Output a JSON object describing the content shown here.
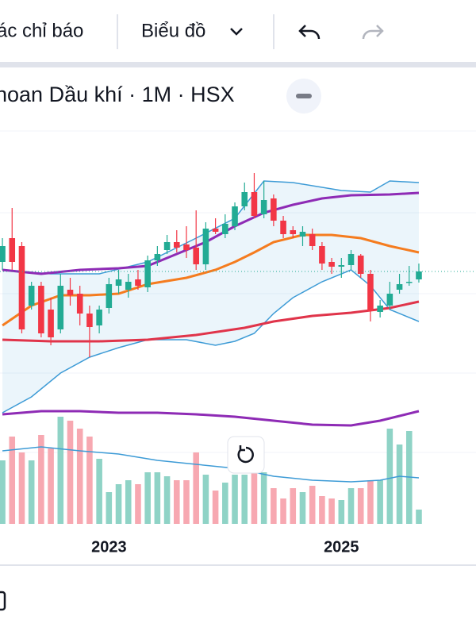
{
  "toolbar": {
    "indicators": "ác chỉ báo",
    "chart": "Biểu đồ"
  },
  "header": {
    "title": "hoan Dầu khí · 1M · HSX"
  },
  "chart_data": {
    "type": "candlestick",
    "x": [
      0,
      1,
      2,
      3,
      4,
      5,
      6,
      7,
      8,
      9,
      10,
      11,
      12,
      13,
      14,
      15,
      16,
      17,
      18,
      19,
      20,
      21,
      22,
      23,
      24,
      25,
      26,
      27,
      28,
      29,
      30,
      31,
      32,
      33,
      34,
      35,
      36,
      37,
      38,
      39,
      40,
      41,
      42,
      43
    ],
    "open": [
      19.5,
      22.5,
      21.5,
      14,
      16.5,
      13.5,
      11,
      16,
      15.5,
      13,
      11.5,
      13.7,
      16.5,
      16,
      17.3,
      16.3,
      19.7,
      21,
      22,
      21.7,
      21.3,
      19.2,
      23.7,
      23,
      24,
      26.5,
      28.3,
      25.5,
      27.5,
      24.7,
      23.5,
      22.7,
      23,
      21.5,
      19.5,
      18.9,
      19.1,
      20.3,
      18,
      13.2,
      14,
      16,
      17,
      17.3
    ],
    "high": [
      22.5,
      26.3,
      22,
      17,
      17,
      15,
      18,
      17.5,
      16.5,
      14,
      14,
      17.5,
      18.5,
      18,
      18.5,
      20.3,
      21.5,
      22.9,
      23.5,
      24,
      26,
      24.5,
      25,
      25.5,
      27,
      29.5,
      30.7,
      29.7,
      28,
      25.3,
      24,
      24,
      23.7,
      22,
      20,
      20,
      21,
      20.5,
      18.5,
      14.7,
      17,
      18,
      19,
      19.3
    ],
    "low": [
      18.5,
      18.5,
      10.5,
      13.5,
      10,
      9,
      10.5,
      14,
      11.5,
      7.5,
      10.5,
      13,
      15.5,
      15,
      16,
      15.7,
      19,
      20.5,
      20.7,
      20,
      18.5,
      18.5,
      23,
      22.5,
      23.5,
      26,
      25,
      25,
      24,
      22.5,
      22.5,
      21.5,
      21,
      18.5,
      18,
      17.5,
      18.5,
      17.5,
      12,
      12.5,
      13.5,
      15.5,
      16.5,
      16.9
    ],
    "close": [
      21.5,
      19.5,
      11,
      16.5,
      10.5,
      10,
      16.5,
      15.3,
      13,
      11.3,
      13.5,
      16.7,
      17.3,
      17,
      16.5,
      19.7,
      20.5,
      22,
      21.3,
      21,
      19.2,
      23.7,
      23.3,
      24.3,
      26.5,
      28.3,
      25.3,
      27.3,
      24.7,
      23,
      23,
      23.3,
      21.5,
      19.3,
      18.9,
      19.1,
      20.5,
      18,
      13.3,
      14,
      15.5,
      16.7,
      17,
      18.3
    ],
    "up_color": "#22ab94",
    "down_color": "#f23645",
    "xlim": [
      -0.25,
      48.9
    ],
    "ylim": [
      -2,
      36
    ],
    "xticks": [
      {
        "value": 11,
        "label": "2023"
      },
      {
        "value": 35,
        "label": "2025"
      }
    ],
    "overlays": [
      {
        "color": "#3d9bd6",
        "x": [
          0,
          5,
          10,
          15,
          20,
          24,
          27,
          30,
          35,
          38,
          40,
          43
        ],
        "values": [
          18.5,
          18,
          18,
          19.5,
          22.5,
          25,
          29.7,
          29.5,
          28.5,
          28.3,
          29.7,
          29.5
        ]
      },
      {
        "color": "#3d9bd6",
        "x": [
          0,
          3,
          6,
          9,
          12,
          15,
          19,
          22,
          24,
          26,
          28,
          30,
          33,
          36,
          38,
          40,
          43
        ],
        "values": [
          0.5,
          2.5,
          5.5,
          7.5,
          8.7,
          9.7,
          9.7,
          9,
          9.5,
          10.5,
          13,
          15,
          17,
          18.5,
          16.5,
          13.5,
          12
        ]
      },
      {
        "color": "#f57c1f",
        "x": [
          0,
          3,
          6,
          9,
          12,
          15,
          19,
          22,
          24,
          26,
          28,
          31,
          34,
          37,
          40,
          43
        ],
        "values": [
          11.5,
          14,
          15.3,
          15.3,
          15.5,
          16.7,
          17.5,
          18.5,
          19.5,
          20.7,
          22,
          22.9,
          22.9,
          22.5,
          21.5,
          20.7
        ]
      },
      {
        "color": "#e0344a",
        "x": [
          0,
          5,
          10,
          15,
          20,
          25,
          28,
          32,
          36,
          40,
          43
        ],
        "values": [
          9.7,
          9.5,
          9.5,
          9.7,
          10.3,
          11.2,
          12,
          12.7,
          13.1,
          13.7,
          14.5
        ]
      },
      {
        "color": "#8e2bb5",
        "x": [
          0,
          4,
          8,
          12,
          15,
          18,
          21,
          24,
          27,
          30,
          33,
          36,
          40,
          43
        ],
        "values": [
          18.5,
          18,
          18.5,
          18.7,
          19,
          20.5,
          22,
          24,
          25.7,
          26.7,
          27.5,
          27.9,
          28,
          28.2
        ]
      },
      {
        "color": "#8e2bb5",
        "x": [
          0,
          4,
          8,
          12,
          16,
          20,
          24,
          28,
          32,
          36,
          39,
          43
        ],
        "values": [
          0.3,
          0.7,
          0.7,
          0.5,
          0.5,
          0.3,
          0,
          -0.5,
          -1,
          -1.1,
          -0.5,
          0.7
        ]
      }
    ],
    "volume": {
      "values": [
        80,
        110,
        90,
        80,
        112,
        95,
        135,
        130,
        120,
        110,
        82,
        40,
        50,
        55,
        50,
        65,
        65,
        60,
        55,
        55,
        90,
        62,
        42,
        52,
        62,
        62,
        65,
        65,
        45,
        32,
        45,
        40,
        48,
        35,
        32,
        30,
        45,
        45,
        55,
        55,
        120,
        100,
        117,
        18
      ],
      "ylim": [
        0,
        140
      ],
      "up_color": "#8fd3c6",
      "down_color": "#f7a8b1",
      "average": {
        "color": "#3d9bd6",
        "x": [
          0,
          4,
          8,
          12,
          16,
          20,
          24,
          28,
          32,
          36,
          39,
          41,
          43
        ],
        "values": [
          92,
          97,
          92,
          88,
          80,
          75,
          70,
          60,
          55,
          53,
          55,
          60,
          58
        ]
      }
    }
  }
}
